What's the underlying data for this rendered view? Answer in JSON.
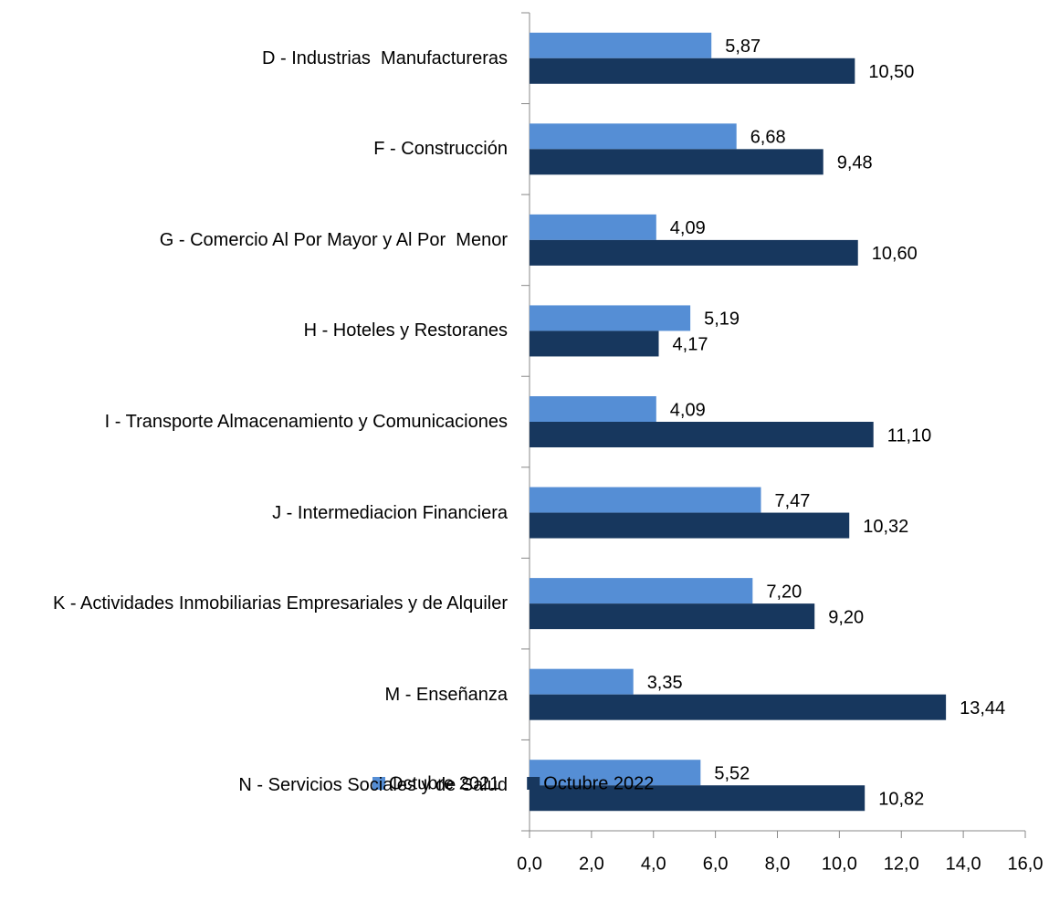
{
  "chart_data": {
    "type": "barh",
    "categories": [
      "D - Industrias  Manufactureras",
      "F - Construcción",
      "G - Comercio Al Por Mayor y Al Por  Menor",
      "H - Hoteles y Restoranes",
      "I - Transporte Almacenamiento y Comunicaciones",
      "J - Intermediacion Financiera",
      "K - Actividades Inmobiliarias Empresariales y de Alquiler",
      "M - Enseñanza",
      "N - Servicios Sociales y de Salud"
    ],
    "series": [
      {
        "name": "Octubre 2021",
        "color": "#558ed5",
        "values": [
          5.87,
          6.68,
          4.09,
          5.19,
          4.09,
          7.47,
          7.2,
          3.35,
          5.52
        ],
        "value_labels": [
          "5,87",
          "6,68",
          "4,09",
          "5,19",
          "4,09",
          "7,47",
          "7,20",
          "3,35",
          "5,52"
        ]
      },
      {
        "name": "Octubre 2022",
        "color": "#17375e",
        "values": [
          10.5,
          9.48,
          10.6,
          4.17,
          11.1,
          10.32,
          9.2,
          13.44,
          10.82
        ],
        "value_labels": [
          "10,50",
          "9,48",
          "10,60",
          "4,17",
          "11,10",
          "10,32",
          "9,20",
          "13,44",
          "10,82"
        ]
      }
    ],
    "xlim": [
      0,
      16
    ],
    "xticks": [
      {
        "value": 0,
        "label": "0,0"
      },
      {
        "value": 2,
        "label": "2,0"
      },
      {
        "value": 4,
        "label": "4,0"
      },
      {
        "value": 6,
        "label": "6,0"
      },
      {
        "value": 8,
        "label": "8,0"
      },
      {
        "value": 10,
        "label": "10,0"
      },
      {
        "value": 12,
        "label": "12,0"
      },
      {
        "value": 14,
        "label": "14,0"
      },
      {
        "value": 16,
        "label": "16,0"
      }
    ],
    "legend": "bottom"
  }
}
